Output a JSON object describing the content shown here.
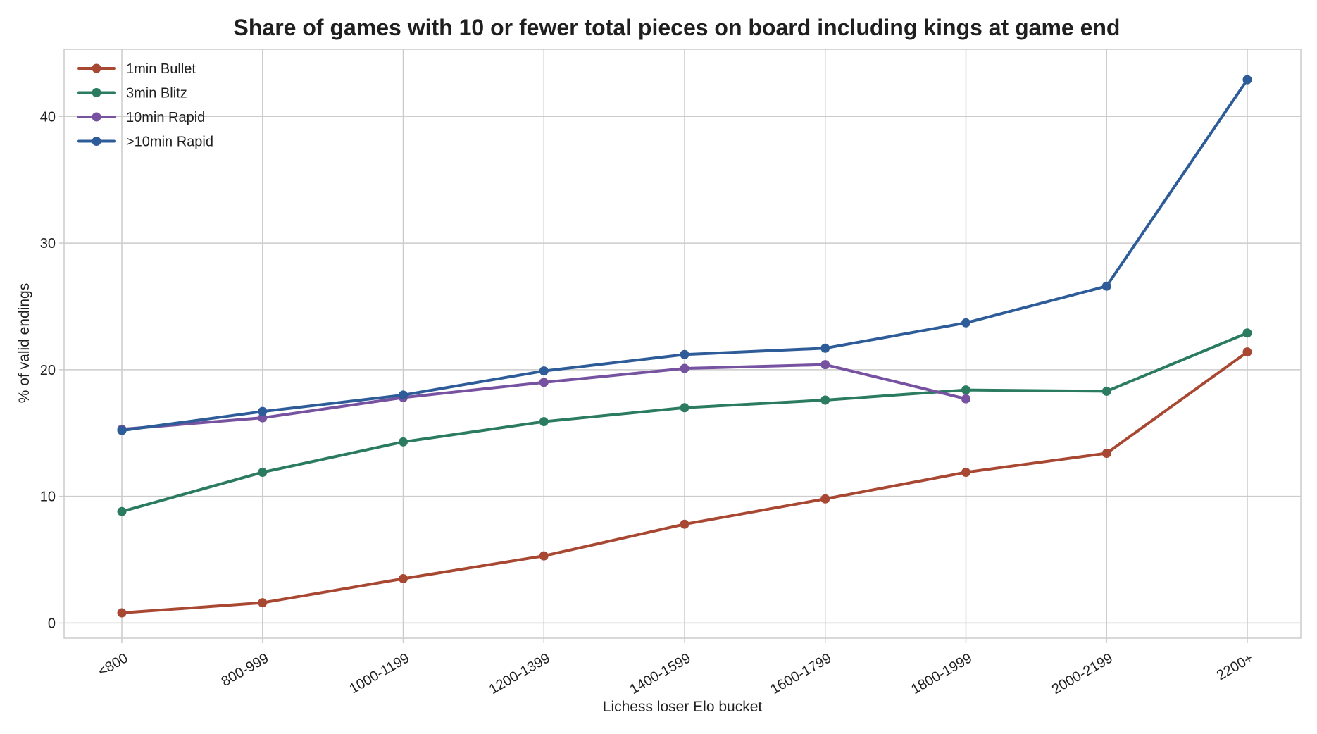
{
  "chart_data": {
    "type": "line",
    "title": "Share of games with 10 or fewer total pieces on board including kings at game end",
    "xlabel": "Lichess loser Elo bucket",
    "ylabel": "% of valid endings",
    "categories": [
      "<800",
      "800-999",
      "1000-1199",
      "1200-1399",
      "1400-1599",
      "1600-1799",
      "1800-1999",
      "2000-2199",
      "2200+"
    ],
    "ylim": [
      -1.2,
      45.3
    ],
    "yticks": [
      0,
      10,
      20,
      30,
      40
    ],
    "grid": true,
    "legend_position": "top-left",
    "series": [
      {
        "name": "1min Bullet",
        "color": "#a84832",
        "values": [
          0.8,
          1.6,
          3.5,
          5.3,
          7.8,
          9.8,
          11.9,
          13.4,
          21.4
        ]
      },
      {
        "name": "3min Blitz",
        "color": "#2a7b5f",
        "values": [
          8.8,
          11.9,
          14.3,
          15.9,
          17.0,
          17.6,
          18.4,
          18.3,
          22.9
        ]
      },
      {
        "name": "10min Rapid",
        "color": "#7652a0",
        "values": [
          15.3,
          16.2,
          17.8,
          19.0,
          20.1,
          20.4,
          17.7,
          null,
          null
        ]
      },
      {
        "name": ">10min Rapid",
        "color": "#2d5c98",
        "values": [
          15.2,
          16.7,
          18.0,
          19.9,
          21.2,
          21.7,
          23.7,
          26.6,
          42.9
        ]
      }
    ]
  }
}
